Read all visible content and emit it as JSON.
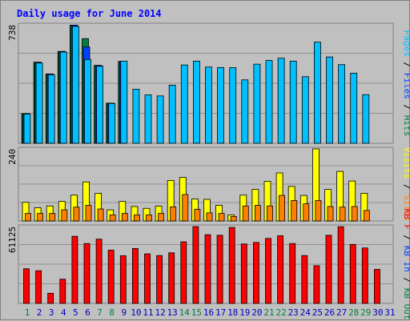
{
  "chart_data": {
    "type": "bar",
    "title": "Daily usage for June 2014",
    "colors": {
      "background": "#c0c0c0",
      "title": "#0000ff",
      "hits": "#008040",
      "files": "#0040ff",
      "pages": "#00c0ff",
      "visits": "#ffff00",
      "sites": "#ff8000",
      "kbout": "#008040",
      "kbin": "#0040ff",
      "kbf": "#ff0000",
      "weekend_label": "#008040",
      "weekday_label": "#0000c0"
    },
    "days": [
      "1",
      "2",
      "3",
      "4",
      "5",
      "6",
      "7",
      "8",
      "9",
      "10",
      "11",
      "12",
      "13",
      "14",
      "15",
      "16",
      "17",
      "18",
      "19",
      "20",
      "21",
      "22",
      "23",
      "24",
      "25",
      "26",
      "27",
      "28",
      "29",
      "30",
      "31"
    ],
    "weekend_days": [
      1,
      7,
      8,
      14,
      15,
      21,
      22,
      28,
      29
    ],
    "panels": [
      {
        "id": "top",
        "max_label": "738",
        "ymax": 738,
        "side_label_parts": [
          {
            "text": "Pages",
            "color": "#00c0ff"
          },
          {
            "text": " / ",
            "color": "#000000"
          },
          {
            "text": "Files",
            "color": "#0040ff"
          },
          {
            "text": " / ",
            "color": "#000000"
          },
          {
            "text": "Hits",
            "color": "#008040"
          }
        ],
        "series": [
          {
            "name": "Hits",
            "color": "#008040",
            "values": [
              185,
              505,
              432,
              572,
              736,
              652,
              485,
              250,
              510,
              0,
              0,
              0,
              0,
              0,
              0,
              0,
              0,
              0,
              0,
              0,
              0,
              0,
              0,
              0,
              0,
              0,
              0,
              0,
              0,
              0,
              null
            ]
          },
          {
            "name": "Files",
            "color": "#0040ff",
            "values": [
              185,
              505,
              432,
              572,
              736,
              600,
              485,
              250,
              510,
              0,
              0,
              0,
              0,
              0,
              0,
              0,
              0,
              0,
              0,
              0,
              0,
              0,
              0,
              0,
              0,
              0,
              0,
              0,
              0,
              0,
              null
            ]
          },
          {
            "name": "Pages",
            "color": "#00c0ff",
            "values": [
              182,
              500,
              427,
              568,
              728,
              522,
              480,
              248,
              512,
              337,
              302,
              295,
              362,
              488,
              512,
              475,
              472,
              471,
              395,
              493,
              516,
              530,
              512,
              415,
              630,
              538,
              490,
              437,
              303,
              0,
              null
            ]
          }
        ]
      },
      {
        "id": "middle",
        "max_label": "240",
        "ymax": 240,
        "side_label_parts": [
          {
            "text": "Visits",
            "color": "#ffff00"
          },
          {
            "text": " / ",
            "color": "#000000"
          },
          {
            "text": "Sites",
            "color": "#ff8000"
          }
        ],
        "series": [
          {
            "name": "Visits",
            "color": "#ffff00",
            "values": [
              62,
              44,
              50,
              65,
              86,
              130,
              92,
              37,
              65,
              48,
              42,
              49,
              135,
              145,
              73,
              72,
              52,
              20,
              86,
              105,
              132,
              160,
              115,
              85,
              240,
              105,
              165,
              133,
              92,
              0,
              null
            ]
          },
          {
            "name": "Sites",
            "color": "#ff8000",
            "values": [
              25,
              25,
              25,
              37,
              46,
              52,
              40,
              20,
              25,
              20,
              20,
              25,
              47,
              88,
              39,
              27,
              25,
              15,
              50,
              52,
              50,
              85,
              68,
              57,
              68,
              48,
              46,
              48,
              35,
              0,
              null
            ]
          }
        ]
      },
      {
        "id": "bottom",
        "max_label": "61125",
        "ymax": 61125,
        "side_label_parts": [
          {
            "text": "KB F",
            "color": "#ff0000"
          },
          {
            "text": " / ",
            "color": "#000000"
          },
          {
            "text": "KB In",
            "color": "#0040ff"
          },
          {
            "text": " / ",
            "color": "#000000"
          },
          {
            "text": "KB Out",
            "color": "#008040"
          }
        ],
        "series": [
          {
            "name": "KB F",
            "color": "#ff0000",
            "values": [
              27550,
              26000,
              8050,
              19250,
              53350,
              47600,
              51100,
              42350,
              37900,
              43700,
              39400,
              38050,
              40250,
              48950,
              61100,
              54650,
              54200,
              60400,
              47250,
              48500,
              51700,
              53800,
              47600,
              38050,
              30000,
              54200,
              61000,
              46900,
              44100,
              27050,
              null
            ]
          }
        ]
      }
    ]
  }
}
